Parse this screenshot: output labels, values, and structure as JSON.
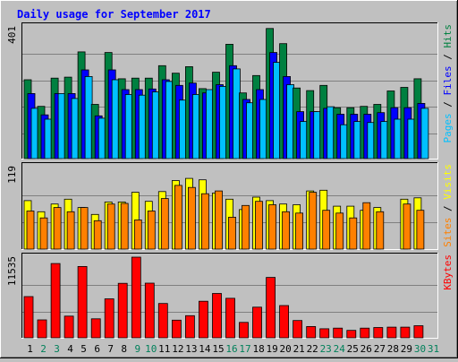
{
  "chart_data": [
    {
      "type": "bar",
      "title": "Daily usage for September 2017",
      "ymax_label": "401",
      "right_labels": [
        "Pages",
        " / ",
        "Files",
        " / ",
        "Hits"
      ],
      "categories": [
        "1",
        "2",
        "3",
        "4",
        "5",
        "6",
        "7",
        "8",
        "9",
        "10",
        "11",
        "12",
        "13",
        "14",
        "15",
        "16",
        "17",
        "18",
        "19",
        "20",
        "21",
        "22",
        "23",
        "24",
        "25",
        "26",
        "27",
        "28",
        "29",
        "30",
        "31"
      ],
      "weekend_days": [
        2,
        3,
        9,
        10,
        16,
        17,
        23,
        24,
        30,
        31
      ],
      "ylim": [
        0,
        401
      ],
      "series": [
        {
          "name": "Hits",
          "color": "#008040",
          "values": [
            240,
            159,
            245,
            248,
            325,
            165,
            323,
            243,
            245,
            245,
            283,
            260,
            280,
            213,
            263,
            348,
            200,
            253,
            396,
            350,
            215,
            207,
            223,
            155,
            155,
            159,
            165,
            206,
            217,
            243,
            0
          ]
        },
        {
          "name": "Files",
          "color": "#0000ff",
          "values": [
            198,
            133,
            198,
            198,
            270,
            130,
            270,
            210,
            210,
            212,
            240,
            223,
            230,
            200,
            225,
            283,
            180,
            210,
            323,
            250,
            143,
            143,
            153,
            135,
            135,
            135,
            140,
            155,
            155,
            168,
            0
          ]
        },
        {
          "name": "Pages",
          "color": "#00c0ff",
          "values": [
            153,
            120,
            198,
            183,
            250,
            123,
            240,
            195,
            193,
            203,
            235,
            178,
            195,
            210,
            220,
            273,
            170,
            180,
            293,
            225,
            113,
            143,
            158,
            103,
            113,
            110,
            113,
            120,
            120,
            153,
            0
          ]
        }
      ]
    },
    {
      "type": "bar",
      "ymax_label": "119",
      "right_labels": [
        "Sites",
        " / ",
        "Visits"
      ],
      "ylim": [
        0,
        119
      ],
      "series": [
        {
          "name": "Visits",
          "color": "#ffff00",
          "values": [
            70,
            54,
            65,
            72,
            60,
            50,
            68,
            68,
            82,
            69,
            83,
            99,
            102,
            100,
            81,
            72,
            57,
            75,
            70,
            65,
            64,
            84,
            85,
            62,
            62,
            56,
            60,
            0,
            72,
            74,
            0
          ]
        },
        {
          "name": "Sites",
          "color": "#ff8000",
          "values": [
            55,
            45,
            60,
            54,
            60,
            41,
            65,
            66,
            42,
            55,
            73,
            92,
            89,
            80,
            84,
            46,
            63,
            69,
            64,
            54,
            52,
            82,
            56,
            52,
            45,
            67,
            54,
            0,
            65,
            56,
            0
          ]
        }
      ]
    },
    {
      "type": "bar",
      "ymax_label": "11535",
      "right_labels": [
        "KBytes"
      ],
      "ylim": [
        0,
        11535
      ],
      "series": [
        {
          "name": "KBytes",
          "color": "#ff0000",
          "values": [
            5900,
            2560,
            10620,
            3100,
            10200,
            2720,
            5570,
            7790,
            11535,
            7820,
            4910,
            2520,
            3170,
            5230,
            6350,
            5650,
            2210,
            4380,
            8640,
            4610,
            2470,
            1620,
            1290,
            1380,
            1070,
            1380,
            1480,
            1530,
            1530,
            1730,
            0
          ]
        }
      ]
    }
  ]
}
